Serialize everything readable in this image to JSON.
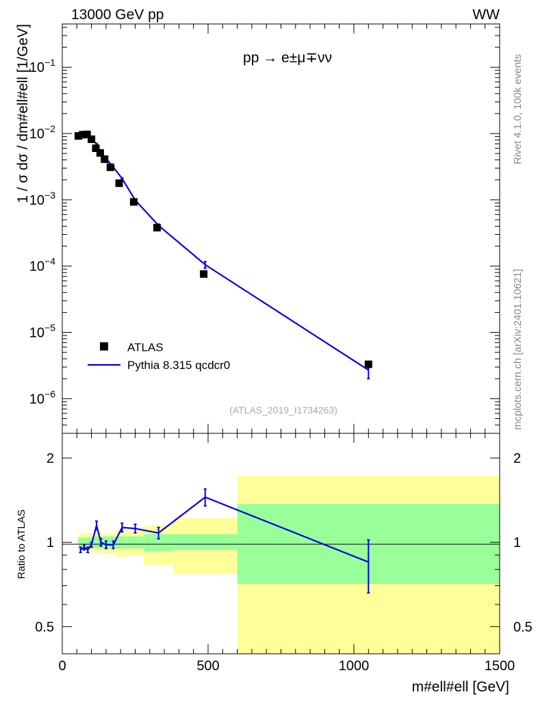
{
  "header": {
    "energy_label": "13000 GeV pp",
    "process_tag": "WW"
  },
  "side_text": {
    "rivet": "Rivet 4.1.0,  100k events",
    "site": "mcplots.cern.ch [arXiv:2401.10621]"
  },
  "colors": {
    "mc": "#0000e6",
    "data": "#000000",
    "band_inner": "#99ff99",
    "band_outer": "#ffff99"
  },
  "chart_data": [
    {
      "type": "scatter",
      "panel": "main",
      "title": "pp → e±μ∓νν",
      "xlabel": "m#ell#ell [GeV]",
      "ylabel": "1 / σ  dσ / dm#ell#ell [1/GeV]",
      "yscale": "log",
      "xlim": [
        0,
        1500
      ],
      "ylim": [
        3e-07,
        0.45
      ],
      "yticks": [
        1e-06,
        1e-05,
        0.0001,
        0.001,
        0.01,
        0.1
      ],
      "ytick_labels": [
        {
          "base": "10",
          "exp": "−6"
        },
        {
          "base": "10",
          "exp": "−5"
        },
        {
          "base": "10",
          "exp": "−4"
        },
        {
          "base": "10",
          "exp": "−3"
        },
        {
          "base": "10",
          "exp": "−2"
        },
        {
          "base": "10",
          "exp": "−1"
        }
      ],
      "reference": "(ATLAS_2019_I1734263)",
      "legend": [
        "ATLAS",
        "Pythia 8.315 qcdcr0"
      ],
      "series": [
        {
          "name": "ATLAS",
          "x": [
            55,
            70,
            85,
            100,
            115,
            130,
            145,
            165,
            195,
            245,
            325,
            485,
            1050
          ],
          "values": [
            0.0092,
            0.0096,
            0.0097,
            0.0082,
            0.006,
            0.0051,
            0.0041,
            0.0031,
            0.00178,
            0.00093,
            0.00038,
            7.6e-05,
            3.3e-06
          ]
        },
        {
          "name": "Pythia 8.315 qcdcr0",
          "x": [
            62.5,
            75,
            87.5,
            100,
            117.5,
            132.5,
            150,
            175,
            205,
            250,
            330,
            490,
            1050
          ],
          "values": [
            0.0088,
            0.0092,
            0.0093,
            0.0085,
            0.0069,
            0.0052,
            0.0042,
            0.0031,
            0.0021,
            0.00099,
            0.00041,
            0.000105,
            2.7e-06
          ],
          "err_hi": [
            0.0002,
            0.0002,
            0.0002,
            0.0002,
            0.0002,
            0.0002,
            0.0001,
            0.0001,
            5e-05,
            3e-05,
            2e-05,
            1.2e-05,
            7e-07
          ],
          "err_lo": [
            0.0002,
            0.0002,
            0.0002,
            0.0002,
            0.0002,
            0.0002,
            0.0001,
            0.0001,
            5e-05,
            3e-05,
            2e-05,
            1.2e-05,
            7e-07
          ]
        }
      ]
    },
    {
      "type": "line",
      "panel": "ratio",
      "xlabel": "m#ell#ell [GeV]",
      "ylabel": "Ratio to ATLAS",
      "yscale": "log",
      "xlim": [
        0,
        1500
      ],
      "ylim": [
        0.4,
        2.45
      ],
      "yticks": [
        0.5,
        1,
        2
      ],
      "ytick_labels": [
        "0.5",
        "1",
        "2"
      ],
      "xticks": [
        0,
        500,
        1000,
        1500
      ],
      "xtick_labels": [
        "0",
        "500",
        "1000",
        "1500"
      ],
      "bins": [
        {
          "lo": 55,
          "hi": 70,
          "inner": [
            0.96,
            1.04
          ],
          "outer": [
            0.93,
            1.07
          ]
        },
        {
          "lo": 70,
          "hi": 80,
          "inner": [
            0.96,
            1.04
          ],
          "outer": [
            0.93,
            1.08
          ]
        },
        {
          "lo": 80,
          "hi": 95,
          "inner": [
            0.96,
            1.04
          ],
          "outer": [
            0.93,
            1.08
          ]
        },
        {
          "lo": 95,
          "hi": 105,
          "inner": [
            0.96,
            1.04
          ],
          "outer": [
            0.92,
            1.08
          ]
        },
        {
          "lo": 105,
          "hi": 125,
          "inner": [
            0.95,
            1.05
          ],
          "outer": [
            0.92,
            1.08
          ]
        },
        {
          "lo": 125,
          "hi": 140,
          "inner": [
            0.95,
            1.05
          ],
          "outer": [
            0.91,
            1.08
          ]
        },
        {
          "lo": 140,
          "hi": 160,
          "inner": [
            0.95,
            1.05
          ],
          "outer": [
            0.91,
            1.08
          ]
        },
        {
          "lo": 160,
          "hi": 180,
          "inner": [
            0.95,
            1.05
          ],
          "outer": [
            0.91,
            1.08
          ]
        },
        {
          "lo": 180,
          "hi": 220,
          "inner": [
            0.95,
            1.05
          ],
          "outer": [
            0.89,
            1.1
          ]
        },
        {
          "lo": 220,
          "hi": 280,
          "inner": [
            0.95,
            1.05
          ],
          "outer": [
            0.9,
            1.1
          ]
        },
        {
          "lo": 280,
          "hi": 380,
          "inner": [
            0.93,
            1.07
          ],
          "outer": [
            0.83,
            1.15
          ]
        },
        {
          "lo": 380,
          "hi": 600,
          "inner": [
            0.94,
            1.07
          ],
          "outer": [
            0.77,
            1.22
          ]
        },
        {
          "lo": 600,
          "hi": 1500,
          "inner": [
            0.71,
            1.37
          ],
          "outer": [
            0.4,
            1.73
          ]
        }
      ],
      "series": [
        {
          "name": "Pythia 8.315 qcdcr0 / ATLAS",
          "x": [
            62.5,
            75,
            87.5,
            100,
            117.5,
            132.5,
            150,
            175,
            205,
            250,
            330,
            490,
            1050
          ],
          "values": [
            0.94,
            0.96,
            0.94,
            0.98,
            1.15,
            1.0,
            0.98,
            0.98,
            1.13,
            1.12,
            1.08,
            1.45,
            0.85
          ],
          "err_hi": [
            0.02,
            0.02,
            0.02,
            0.02,
            0.04,
            0.03,
            0.03,
            0.03,
            0.04,
            0.04,
            0.05,
            0.1,
            0.17
          ],
          "err_lo": [
            0.02,
            0.02,
            0.02,
            0.02,
            0.04,
            0.03,
            0.03,
            0.03,
            0.04,
            0.04,
            0.05,
            0.1,
            0.19
          ]
        }
      ]
    }
  ]
}
